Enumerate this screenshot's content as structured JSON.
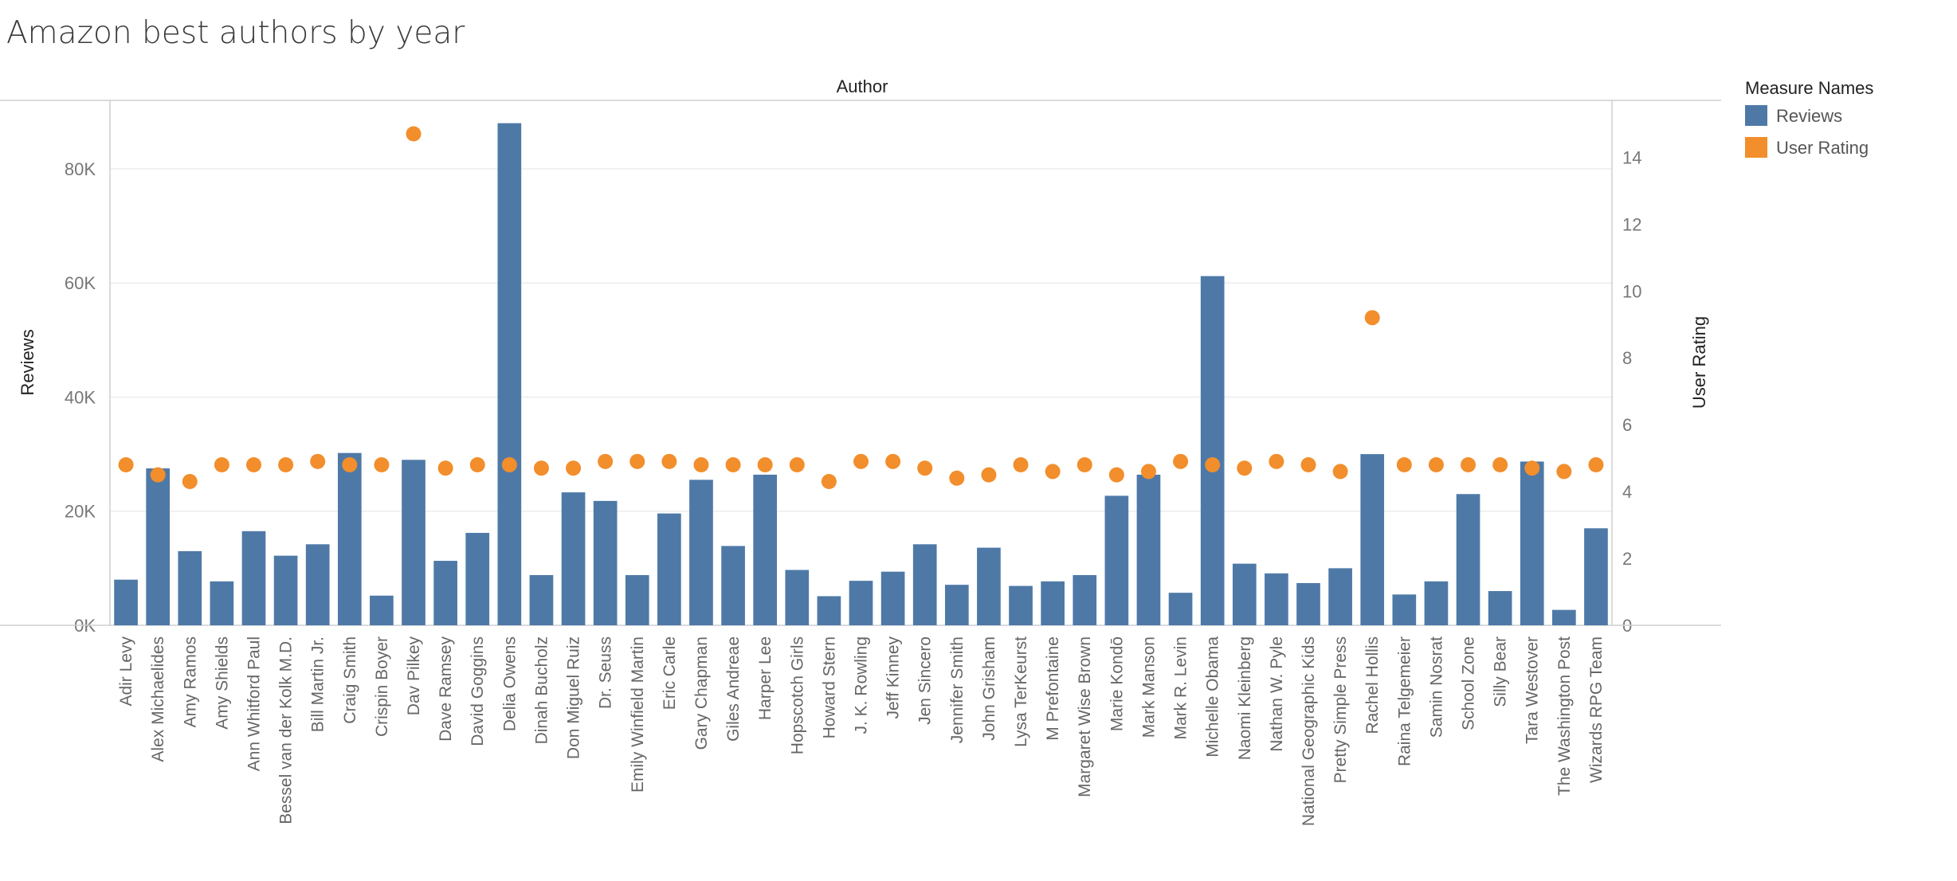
{
  "chart_data": {
    "type": "bar",
    "title": "Amazon best authors by year",
    "column_header": "Author",
    "ylabel": "Reviews",
    "y2label": "User Rating",
    "ylim": [
      0,
      92000
    ],
    "y2lim": [
      0,
      15.7
    ],
    "yticks": [
      0,
      20000,
      40000,
      60000,
      80000
    ],
    "ytick_labels": [
      "0K",
      "20K",
      "40K",
      "60K",
      "80K"
    ],
    "y2ticks": [
      0,
      2,
      4,
      6,
      8,
      10,
      12,
      14
    ],
    "y2tick_labels": [
      "0",
      "2",
      "4",
      "6",
      "8",
      "10",
      "12",
      "14"
    ],
    "grid": true,
    "legend_title": "Measure Names",
    "legend_position": "top-right",
    "categories": [
      "Adir Levy",
      "Alex Michaelides",
      "Amy Ramos",
      "Amy Shields",
      "Ann Whitford Paul",
      "Bessel van der Kolk M.D.",
      "Bill Martin Jr.",
      "Craig Smith",
      "Crispin Boyer",
      "Dav Pilkey",
      "Dave Ramsey",
      "David Goggins",
      "Delia Owens",
      "Dinah Bucholz",
      "Don Miguel Ruiz",
      "Dr. Seuss",
      "Emily Winfield Martin",
      "Eric Carle",
      "Gary Chapman",
      "Giles Andreae",
      "Harper Lee",
      "Hopscotch Girls",
      "Howard Stern",
      "J. K. Rowling",
      "Jeff Kinney",
      "Jen Sincero",
      "Jennifer Smith",
      "John Grisham",
      "Lysa TerKeurst",
      "M Prefontaine",
      "Margaret Wise Brown",
      "Marie Kondō",
      "Mark Manson",
      "Mark R. Levin",
      "Michelle Obama",
      "Naomi Kleinberg",
      "Nathan W. Pyle",
      "National Geographic Kids",
      "Pretty Simple Press",
      "Rachel Hollis",
      "Raina Telgemeier",
      "Samin Nosrat",
      "School Zone",
      "Silly Bear",
      "Tara Westover",
      "The Washington Post",
      "Wizards RPG Team"
    ],
    "series": [
      {
        "name": "Reviews",
        "color": "#4e79a7",
        "mark": "bar",
        "axis": "left",
        "values": [
          8000,
          27500,
          13000,
          7700,
          16500,
          12200,
          14200,
          30200,
          5200,
          29000,
          11300,
          16200,
          88000,
          8800,
          23300,
          21800,
          8800,
          19600,
          25500,
          13900,
          26400,
          9700,
          5100,
          7800,
          9400,
          14200,
          7100,
          13600,
          6900,
          7700,
          8800,
          22700,
          26400,
          5700,
          61200,
          10800,
          9100,
          7400,
          10000,
          30000,
          5400,
          7700,
          23000,
          6000,
          28700,
          2700,
          17000
        ]
      },
      {
        "name": "User Rating",
        "color": "#f28e2b",
        "mark": "circle",
        "axis": "right",
        "values": [
          4.8,
          4.5,
          4.3,
          4.8,
          4.8,
          4.8,
          4.9,
          4.8,
          4.8,
          14.7,
          4.7,
          4.8,
          4.8,
          4.7,
          4.7,
          4.9,
          4.9,
          4.9,
          4.8,
          4.8,
          4.8,
          4.8,
          4.3,
          4.9,
          4.9,
          4.7,
          4.4,
          4.5,
          4.8,
          4.6,
          4.8,
          4.5,
          4.6,
          4.9,
          4.8,
          4.7,
          4.9,
          4.8,
          4.6,
          9.2,
          4.8,
          4.8,
          4.8,
          4.8,
          4.7,
          4.6,
          4.8
        ]
      }
    ]
  }
}
